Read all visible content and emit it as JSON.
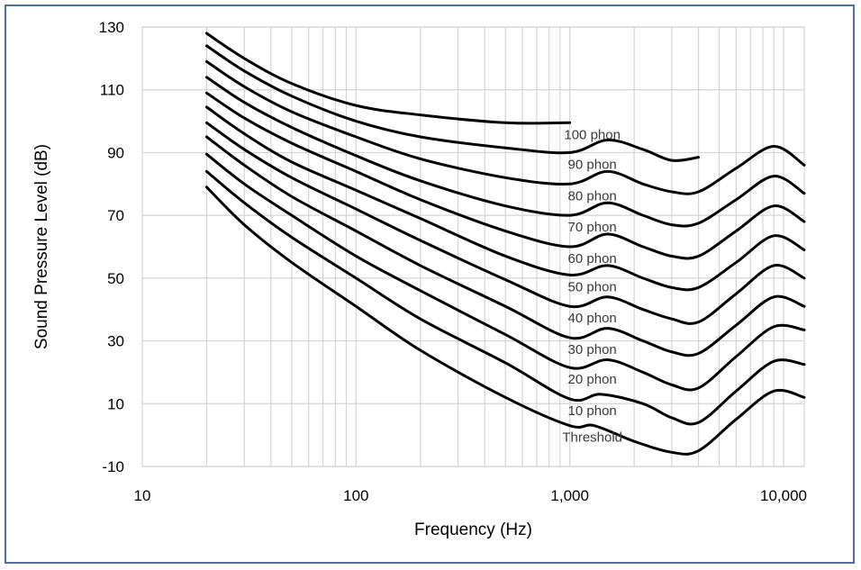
{
  "chart_data": {
    "type": "line",
    "title": "",
    "xlabel": "Frequency (Hz)",
    "ylabel": "Sound Pressure Level (dB)",
    "xscale": "log",
    "xlim": [
      10,
      12500
    ],
    "ylim": [
      -10,
      130
    ],
    "x_ticks": [
      10,
      100,
      1000,
      10000
    ],
    "x_tick_labels": [
      "10",
      "100",
      "1,000",
      "10,000"
    ],
    "y_ticks": [
      -10,
      10,
      30,
      50,
      70,
      90,
      110,
      130
    ],
    "y_tick_labels": [
      "-10",
      "10",
      "30",
      "50",
      "70",
      "90",
      "110",
      "130"
    ],
    "grid": true,
    "line_color": "#000000",
    "series": [
      {
        "name": "100 phon",
        "label": "100 phon",
        "points": [
          [
            20,
            128
          ],
          [
            30,
            120
          ],
          [
            50,
            112
          ],
          [
            100,
            105
          ],
          [
            200,
            102
          ],
          [
            500,
            99.5
          ],
          [
            1000,
            99.5
          ]
        ]
      },
      {
        "name": "90 phon",
        "label": "90 phon",
        "points": [
          [
            20,
            124
          ],
          [
            30,
            116
          ],
          [
            50,
            108
          ],
          [
            100,
            100
          ],
          [
            200,
            95
          ],
          [
            500,
            91.5
          ],
          [
            1000,
            90
          ],
          [
            1500,
            94
          ],
          [
            2200,
            91
          ],
          [
            3000,
            87.5
          ],
          [
            4000,
            88.5
          ]
        ]
      },
      {
        "name": "80 phon",
        "label": "80 phon",
        "points": [
          [
            20,
            119
          ],
          [
            30,
            111
          ],
          [
            50,
            103
          ],
          [
            100,
            95
          ],
          [
            200,
            88
          ],
          [
            500,
            82
          ],
          [
            1000,
            80
          ],
          [
            1500,
            84
          ],
          [
            2200,
            80
          ],
          [
            3000,
            77.5
          ],
          [
            4000,
            77.5
          ],
          [
            6000,
            85
          ],
          [
            9000,
            92
          ],
          [
            12500,
            86
          ]
        ]
      },
      {
        "name": "70 phon",
        "label": "70 phon",
        "points": [
          [
            20,
            114
          ],
          [
            30,
            106
          ],
          [
            50,
            98
          ],
          [
            100,
            89
          ],
          [
            200,
            81
          ],
          [
            500,
            73
          ],
          [
            1000,
            70
          ],
          [
            1500,
            74
          ],
          [
            2200,
            70
          ],
          [
            3000,
            67
          ],
          [
            4000,
            67.5
          ],
          [
            6000,
            75
          ],
          [
            9000,
            82.5
          ],
          [
            12500,
            77
          ]
        ]
      },
      {
        "name": "60 phon",
        "label": "60 phon",
        "points": [
          [
            20,
            109
          ],
          [
            30,
            101
          ],
          [
            50,
            93
          ],
          [
            100,
            84
          ],
          [
            200,
            75
          ],
          [
            500,
            65
          ],
          [
            1000,
            60
          ],
          [
            1500,
            64
          ],
          [
            2200,
            60
          ],
          [
            3000,
            57
          ],
          [
            4000,
            57
          ],
          [
            6000,
            65
          ],
          [
            9000,
            73
          ],
          [
            12500,
            68
          ]
        ]
      },
      {
        "name": "50 phon",
        "label": "50 phon",
        "points": [
          [
            20,
            104.5
          ],
          [
            30,
            96
          ],
          [
            50,
            87
          ],
          [
            100,
            78
          ],
          [
            200,
            69
          ],
          [
            500,
            57
          ],
          [
            1000,
            51
          ],
          [
            1500,
            54
          ],
          [
            2200,
            50
          ],
          [
            3000,
            47
          ],
          [
            4000,
            47
          ],
          [
            6000,
            55
          ],
          [
            9000,
            63.5
          ],
          [
            12500,
            59
          ]
        ]
      },
      {
        "name": "40 phon",
        "label": "40 phon",
        "points": [
          [
            20,
            99.5
          ],
          [
            30,
            91
          ],
          [
            50,
            82
          ],
          [
            100,
            72
          ],
          [
            200,
            62
          ],
          [
            500,
            49.5
          ],
          [
            1000,
            41
          ],
          [
            1500,
            44
          ],
          [
            2200,
            40
          ],
          [
            3000,
            37
          ],
          [
            4000,
            36
          ],
          [
            6000,
            45
          ],
          [
            9000,
            54
          ],
          [
            12500,
            50
          ]
        ]
      },
      {
        "name": "30 phon",
        "label": "30 phon",
        "points": [
          [
            20,
            95
          ],
          [
            30,
            86
          ],
          [
            50,
            76
          ],
          [
            100,
            65
          ],
          [
            200,
            54
          ],
          [
            500,
            41
          ],
          [
            1000,
            31
          ],
          [
            1500,
            34
          ],
          [
            2200,
            30
          ],
          [
            3000,
            26.5
          ],
          [
            4000,
            26
          ],
          [
            6000,
            35
          ],
          [
            9000,
            44
          ],
          [
            12500,
            41
          ]
        ]
      },
      {
        "name": "20 phon",
        "label": "20 phon",
        "points": [
          [
            20,
            89.5
          ],
          [
            30,
            80
          ],
          [
            50,
            70
          ],
          [
            100,
            57
          ],
          [
            200,
            46
          ],
          [
            500,
            32
          ],
          [
            1000,
            21.5
          ],
          [
            1500,
            24
          ],
          [
            2200,
            20
          ],
          [
            3000,
            16
          ],
          [
            4000,
            15
          ],
          [
            6000,
            25
          ],
          [
            9000,
            34.5
          ],
          [
            12500,
            33.5
          ]
        ]
      },
      {
        "name": "10 phon",
        "label": "10 phon",
        "points": [
          [
            20,
            84
          ],
          [
            30,
            74
          ],
          [
            50,
            63
          ],
          [
            100,
            50
          ],
          [
            200,
            37
          ],
          [
            500,
            23
          ],
          [
            1000,
            11.5
          ],
          [
            1400,
            13
          ],
          [
            2200,
            10
          ],
          [
            3000,
            5.5
          ],
          [
            4000,
            4
          ],
          [
            6000,
            14
          ],
          [
            9000,
            23.5
          ],
          [
            12500,
            22.5
          ]
        ]
      },
      {
        "name": "Threshold",
        "label": "Threshold",
        "points": [
          [
            20,
            79
          ],
          [
            30,
            67
          ],
          [
            50,
            55
          ],
          [
            100,
            41
          ],
          [
            200,
            27
          ],
          [
            500,
            12
          ],
          [
            1000,
            3
          ],
          [
            1300,
            3
          ],
          [
            2000,
            -2
          ],
          [
            3000,
            -5.5
          ],
          [
            4000,
            -5
          ],
          [
            6000,
            5
          ],
          [
            9000,
            14
          ],
          [
            12500,
            12
          ]
        ]
      }
    ]
  }
}
